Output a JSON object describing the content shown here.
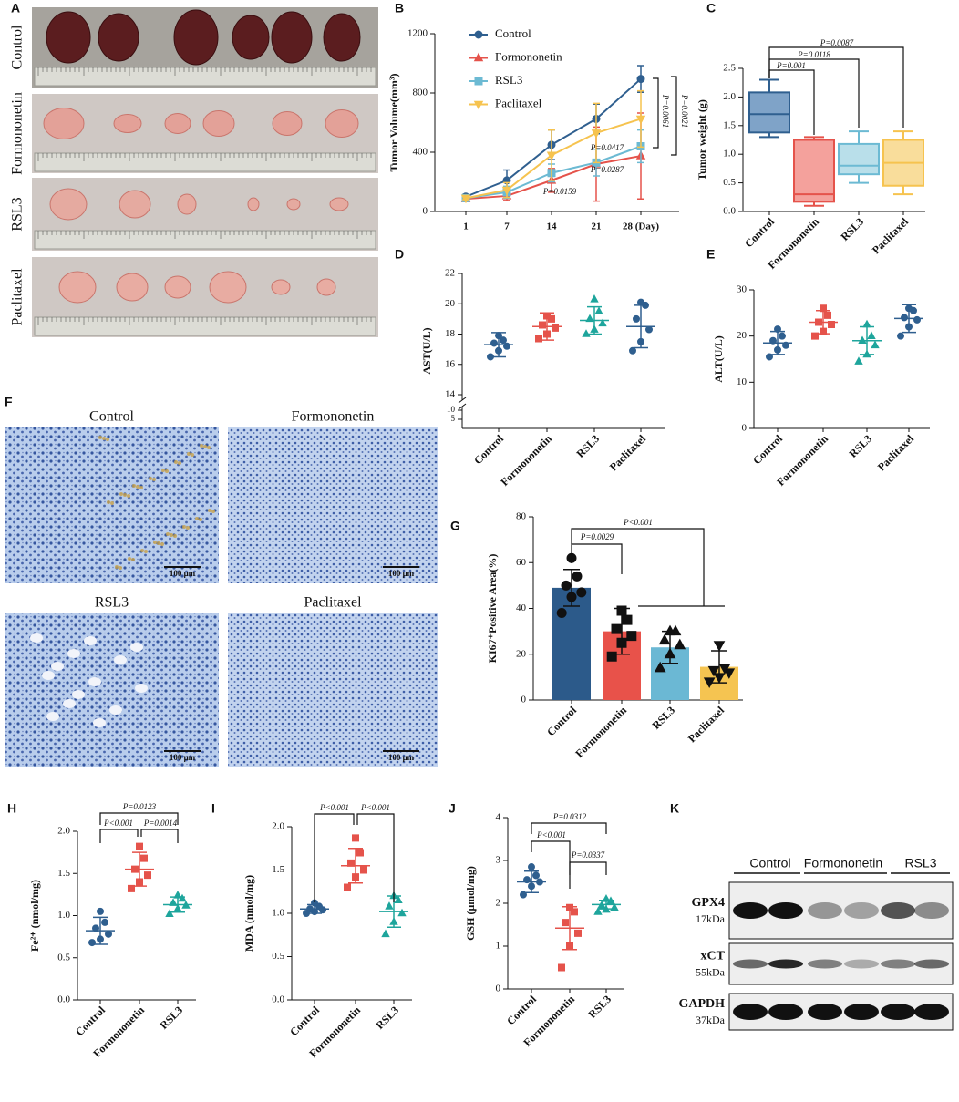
{
  "panels": {
    "A": {
      "letter": "A",
      "rows": [
        "Control",
        "Formononetin",
        "RSL3",
        "Paclitaxel"
      ]
    },
    "F": {
      "letter": "F",
      "labels": [
        "Control",
        "Formononetin",
        "RSL3",
        "Paclitaxel"
      ],
      "scale_bar": "100 μm"
    },
    "K": {
      "letter": "K",
      "groups": [
        "Control",
        "Formononetin",
        "RSL3"
      ],
      "proteins": [
        {
          "name": "GPX4",
          "size": "17kDa"
        },
        {
          "name": "xCT",
          "size": "55kDa"
        },
        {
          "name": "GAPDH",
          "size": "37kDa"
        }
      ]
    }
  },
  "chart_data": [
    {
      "panel": "B",
      "type": "line",
      "y_label": "Tumor Volume(mm³)",
      "categories": [
        "1",
        "7",
        "14",
        "21",
        "28 (Day)"
      ],
      "ylim": [
        0,
        1200
      ],
      "yticks": [
        0,
        400,
        800,
        1200
      ],
      "series": [
        {
          "name": "Control",
          "color": "#2f5f8f",
          "marker": "circle",
          "values": [
            100,
            210,
            450,
            625,
            895
          ],
          "errors": [
            15,
            70,
            100,
            100,
            90
          ]
        },
        {
          "name": "Formononetin",
          "color": "#e5534b",
          "marker": "triangle",
          "values": [
            85,
            105,
            210,
            320,
            375
          ],
          "errors": [
            10,
            30,
            80,
            250,
            290
          ]
        },
        {
          "name": "RSL3",
          "color": "#6cbad3",
          "marker": "square",
          "values": [
            90,
            130,
            260,
            330,
            440
          ],
          "errors": [
            10,
            40,
            60,
            90,
            110
          ]
        },
        {
          "name": "Paclitaxel",
          "color": "#f6c34f",
          "marker": "triangle-down",
          "values": [
            90,
            145,
            380,
            530,
            625
          ],
          "errors": [
            10,
            50,
            170,
            200,
            190
          ]
        }
      ],
      "annotations": [
        "P=0.0159",
        "P=0.0287",
        "P=0.0417",
        "P=0.0061",
        "P=0.0021"
      ]
    },
    {
      "panel": "C",
      "type": "box",
      "y_label": "Tumor weight (g)",
      "categories": [
        "Control",
        "Formononetin",
        "RSL3",
        "Paclitaxel"
      ],
      "colors": [
        "#2f5f8f",
        "#e5534b",
        "#6cbad3",
        "#f6c34f"
      ],
      "fill_colors": [
        "#7fa3c8",
        "#f4a19c",
        "#b9dfea",
        "#f9dd9b"
      ],
      "ylim": [
        0,
        2.5
      ],
      "yticks": [
        {
          "value": 0,
          "label": "0.0"
        },
        {
          "value": 0.5,
          "label": "0.5"
        },
        {
          "value": 1,
          "label": "1.0"
        },
        {
          "value": 1.5,
          "label": "1.5"
        },
        {
          "value": 2,
          "label": "2.0"
        },
        {
          "value": 2.5,
          "label": "2.5"
        }
      ],
      "min": [
        1.3,
        0.1,
        0.5,
        0.3
      ],
      "q1": [
        1.38,
        0.17,
        0.65,
        0.45
      ],
      "median": [
        1.7,
        0.3,
        0.8,
        0.85
      ],
      "q3": [
        2.08,
        1.25,
        1.18,
        1.25
      ],
      "max": [
        2.3,
        1.3,
        1.4,
        1.4
      ],
      "annotations": [
        "P=0.001",
        "P=0.0118",
        "P=0.0087"
      ]
    },
    {
      "panel": "D",
      "type": "dot",
      "y_label": "AST(U/L)",
      "categories": [
        "Control",
        "Formononetin",
        "RSL3",
        "Paclitaxel"
      ],
      "colors": [
        "#2f5f8f",
        "#e5534b",
        "#1ea59c",
        "#2f5f8f"
      ],
      "markers": [
        "circle",
        "square",
        "triangle",
        "circle"
      ],
      "ylim": [
        14,
        22
      ],
      "yticks": [
        14,
        16,
        18,
        20,
        22
      ],
      "ylim_low": [
        0,
        10
      ],
      "yticks_low": [
        5,
        10
      ],
      "values": [
        [
          16.5,
          16.9,
          17.2,
          17.4,
          17.6,
          17.9
        ],
        [
          17.7,
          18.0,
          18.4,
          18.6,
          19.0,
          19.2
        ],
        [
          18.0,
          18.3,
          18.7,
          19.0,
          19.5,
          20.3
        ],
        [
          16.9,
          17.5,
          18.3,
          19.0,
          19.9,
          20.1
        ]
      ],
      "means": [
        17.3,
        18.5,
        18.9,
        18.5
      ],
      "errors": [
        0.8,
        0.9,
        0.9,
        1.4
      ]
    },
    {
      "panel": "E",
      "type": "dot",
      "y_label": "ALT(U/L)",
      "categories": [
        "Control",
        "Formononetin",
        "RSL3",
        "Paclitaxel"
      ],
      "colors": [
        "#2f5f8f",
        "#e5534b",
        "#1ea59c",
        "#2f5f8f"
      ],
      "markers": [
        "circle",
        "square",
        "triangle",
        "circle"
      ],
      "ylim": [
        0,
        30
      ],
      "yticks": [
        0,
        10,
        20,
        30
      ],
      "values": [
        [
          15.5,
          17,
          18,
          19,
          20,
          21.5
        ],
        [
          20,
          21,
          22.5,
          23,
          24.5,
          26
        ],
        [
          14.5,
          16,
          18,
          19,
          20,
          22.5
        ],
        [
          20,
          22,
          23.5,
          24,
          25.5,
          26
        ]
      ],
      "means": [
        18.5,
        23,
        19,
        23.8
      ],
      "errors": [
        2.5,
        2.5,
        3,
        3
      ]
    },
    {
      "panel": "G",
      "type": "bar",
      "y_label": "KI67⁺Positive Area(%)",
      "categories": [
        "Control",
        "Formononetin",
        "RSL3",
        "Paclitaxel"
      ],
      "colors": [
        "#2c5a8a",
        "#e8524a",
        "#6bb8d4",
        "#f5c451"
      ],
      "point_color": "#111111",
      "markers": [
        "circle",
        "square",
        "triangle",
        "triangle-down"
      ],
      "ylim": [
        0,
        80
      ],
      "yticks": [
        0,
        20,
        40,
        60,
        80
      ],
      "values": [
        [
          38,
          45,
          47,
          50,
          54,
          62
        ],
        [
          19,
          25,
          28,
          31,
          35,
          39
        ],
        [
          14,
          20,
          24,
          26,
          30,
          30
        ],
        [
          8,
          10,
          12,
          13,
          14,
          24
        ]
      ],
      "means": [
        49,
        30,
        23,
        14.5
      ],
      "errors": [
        8,
        10,
        7,
        7
      ],
      "annotations": [
        "P=0.0029",
        "P<0.001"
      ]
    },
    {
      "panel": "H",
      "type": "dot",
      "y_label": "Fe²⁺ (nmol/mg)",
      "categories": [
        "Control",
        "Formononetin",
        "RSL3"
      ],
      "colors": [
        "#2f5f8f",
        "#e5534b",
        "#1ea59c"
      ],
      "markers": [
        "circle",
        "square",
        "triangle"
      ],
      "ylim": [
        0,
        2
      ],
      "yticks": [
        {
          "value": 0,
          "label": "0.0"
        },
        {
          "value": 0.5,
          "label": "0.5"
        },
        {
          "value": 1,
          "label": "1.0"
        },
        {
          "value": 1.5,
          "label": "1.5"
        },
        {
          "value": 2,
          "label": "2.0"
        }
      ],
      "values": [
        [
          0.68,
          0.72,
          0.78,
          0.85,
          0.92,
          1.05
        ],
        [
          1.32,
          1.4,
          1.48,
          1.55,
          1.68,
          1.82
        ],
        [
          1.02,
          1.08,
          1.12,
          1.15,
          1.2,
          1.24
        ]
      ],
      "means": [
        0.82,
        1.55,
        1.13
      ],
      "errors": [
        0.16,
        0.2,
        0.09
      ],
      "annotations": [
        "P=0.0123",
        "P<0.001",
        "P=0.0014"
      ]
    },
    {
      "panel": "I",
      "type": "dot",
      "y_label": "MDA (nmol/mg)",
      "categories": [
        "Control",
        "Formononetin",
        "RSL3"
      ],
      "colors": [
        "#2f5f8f",
        "#e5534b",
        "#1ea59c"
      ],
      "markers": [
        "circle",
        "square",
        "triangle"
      ],
      "ylim": [
        0,
        2
      ],
      "yticks": [
        {
          "value": 0,
          "label": "0.0"
        },
        {
          "value": 0.5,
          "label": "0.5"
        },
        {
          "value": 1,
          "label": "1.0"
        },
        {
          "value": 1.5,
          "label": "1.5"
        },
        {
          "value": 2,
          "label": "2.0"
        }
      ],
      "values": [
        [
          1.0,
          1.02,
          1.04,
          1.05,
          1.08,
          1.12
        ],
        [
          1.3,
          1.42,
          1.5,
          1.58,
          1.7,
          1.87
        ],
        [
          0.76,
          0.9,
          1.0,
          1.08,
          1.15,
          1.2
        ]
      ],
      "means": [
        1.05,
        1.55,
        1.02
      ],
      "errors": [
        0.05,
        0.2,
        0.18
      ],
      "annotations": [
        "P<0.001",
        "P<0.001"
      ]
    },
    {
      "panel": "J",
      "type": "dot",
      "y_label": "GSH (μmol/mg)",
      "categories": [
        "Control",
        "Formononetin",
        "RSL3"
      ],
      "colors": [
        "#2f5f8f",
        "#e5534b",
        "#1ea59c"
      ],
      "markers": [
        "circle",
        "square",
        "triangle"
      ],
      "ylim": [
        0,
        4
      ],
      "yticks": [
        0,
        1,
        2,
        3,
        4
      ],
      "values": [
        [
          2.2,
          2.4,
          2.5,
          2.55,
          2.65,
          2.85
        ],
        [
          0.5,
          1.0,
          1.3,
          1.55,
          1.8,
          1.9
        ],
        [
          1.8,
          1.85,
          1.9,
          1.95,
          2.05,
          2.1
        ]
      ],
      "means": [
        2.5,
        1.42,
        1.97
      ],
      "errors": [
        0.25,
        0.5,
        0.1
      ],
      "annotations": [
        "P=0.0312",
        "P<0.001",
        "P=0.0337"
      ]
    }
  ]
}
